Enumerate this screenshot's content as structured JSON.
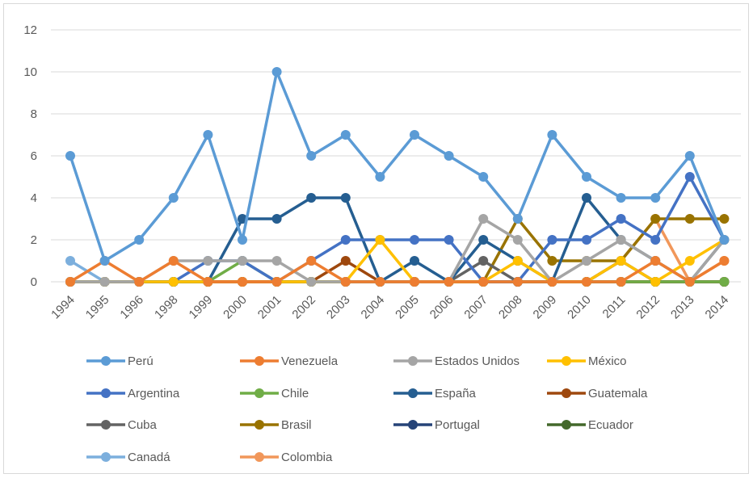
{
  "chart_data": {
    "type": "line",
    "title": "",
    "xlabel": "",
    "ylabel": "",
    "ylim": [
      0,
      12
    ],
    "yticks": [
      0,
      2,
      4,
      6,
      8,
      10,
      12
    ],
    "grid": "horizontal",
    "legend": "bottom",
    "categories": [
      "1994",
      "1995",
      "1996",
      "1998",
      "1999",
      "2000",
      "2001",
      "2002",
      "2003",
      "2004",
      "2005",
      "2006",
      "2007",
      "2008",
      "2009",
      "2010",
      "2011",
      "2012",
      "2013",
      "2014"
    ],
    "series": [
      {
        "name": "Perú",
        "color": "#5B9BD5",
        "values": [
          6,
          1,
          2,
          4,
          7,
          2,
          10,
          6,
          7,
          5,
          7,
          6,
          5,
          3,
          7,
          5,
          4,
          4,
          6,
          2
        ]
      },
      {
        "name": "Venezuela",
        "color": "#ED7D31",
        "values": [
          0,
          1,
          0,
          1,
          0,
          0,
          0,
          1,
          0,
          0,
          0,
          0,
          0,
          0,
          0,
          0,
          0,
          1,
          0,
          1
        ]
      },
      {
        "name": "Estados Unidos",
        "color": "#A5A5A5",
        "values": [
          0,
          0,
          0,
          1,
          1,
          1,
          1,
          0,
          0,
          0,
          0,
          0,
          3,
          2,
          0,
          1,
          2,
          1,
          0,
          2
        ]
      },
      {
        "name": "México",
        "color": "#FFC000",
        "values": [
          0,
          0,
          0,
          0,
          0,
          0,
          0,
          0,
          0,
          2,
          0,
          0,
          0,
          1,
          0,
          0,
          1,
          0,
          1,
          2
        ]
      },
      {
        "name": "Argentina",
        "color": "#4472C4",
        "values": [
          0,
          0,
          0,
          0,
          1,
          1,
          0,
          1,
          2,
          2,
          2,
          2,
          0,
          0,
          2,
          2,
          3,
          2,
          5,
          2
        ]
      },
      {
        "name": "Chile",
        "color": "#70AD47",
        "values": [
          0,
          0,
          0,
          0,
          0,
          1,
          0,
          0,
          0,
          0,
          0,
          0,
          0,
          0,
          0,
          0,
          0,
          0,
          0,
          0
        ]
      },
      {
        "name": "España",
        "color": "#255E91",
        "values": [
          0,
          0,
          0,
          0,
          0,
          3,
          3,
          4,
          4,
          0,
          1,
          0,
          2,
          1,
          0,
          4,
          2,
          1,
          0,
          2
        ]
      },
      {
        "name": "Guatemala",
        "color": "#9E480E",
        "values": [
          0,
          0,
          0,
          0,
          0,
          0,
          0,
          0,
          1,
          0,
          0,
          0,
          0,
          0,
          0,
          0,
          0,
          0,
          0,
          0
        ]
      },
      {
        "name": "Cuba",
        "color": "#636363",
        "values": [
          0,
          0,
          0,
          0,
          0,
          0,
          0,
          0,
          0,
          0,
          0,
          0,
          1,
          0,
          0,
          0,
          0,
          0,
          0,
          0
        ]
      },
      {
        "name": "Brasil",
        "color": "#997300",
        "values": [
          0,
          0,
          0,
          0,
          0,
          0,
          0,
          0,
          0,
          0,
          0,
          0,
          0,
          3,
          1,
          1,
          1,
          3,
          3,
          3
        ]
      },
      {
        "name": "Portugal",
        "color": "#264478",
        "values": [
          0,
          0,
          0,
          0,
          0,
          0,
          0,
          0,
          0,
          0,
          0,
          0,
          0,
          0,
          0,
          0,
          1,
          0,
          0,
          0
        ]
      },
      {
        "name": "Ecuador",
        "color": "#43682B",
        "values": [
          0,
          0,
          0,
          0,
          0,
          0,
          0,
          0,
          0,
          0,
          0,
          0,
          0,
          0,
          0,
          0,
          0,
          0,
          0,
          0
        ]
      },
      {
        "name": "Canadá",
        "color": "#7CAFDD",
        "values": [
          1,
          0,
          0,
          0,
          0,
          0,
          0,
          0,
          0,
          0,
          0,
          0,
          0,
          0,
          0,
          0,
          0,
          0,
          0,
          0
        ]
      },
      {
        "name": "Colombia",
        "color": "#F1975A",
        "values": [
          0,
          0,
          0,
          0,
          0,
          0,
          0,
          0,
          0,
          0,
          0,
          0,
          0,
          0,
          0,
          0,
          1,
          3,
          0,
          1
        ]
      }
    ]
  }
}
